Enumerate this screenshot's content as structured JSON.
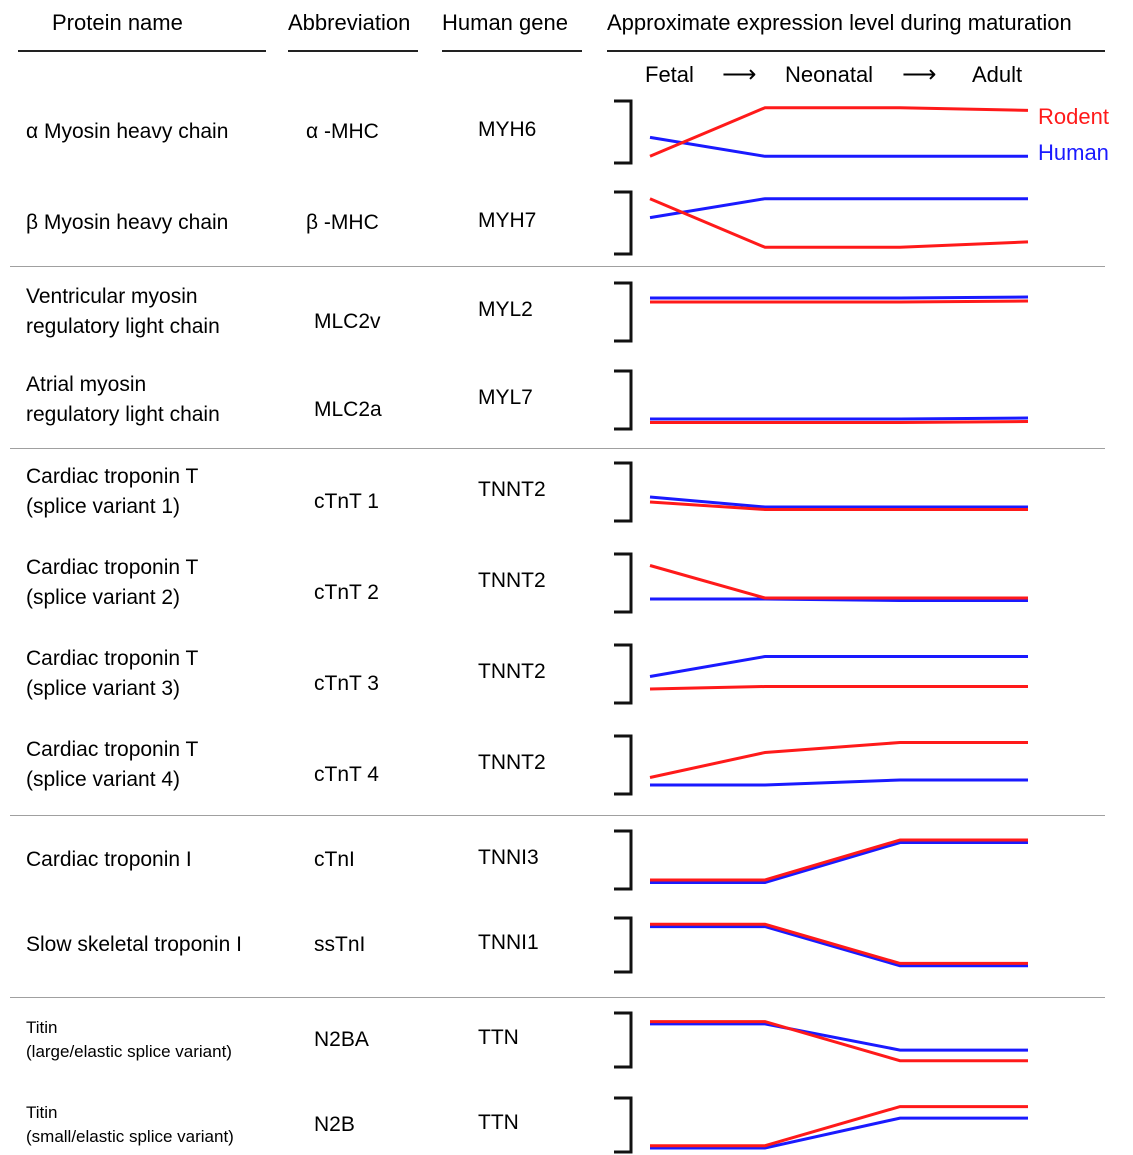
{
  "headers": {
    "protein": "Protein name",
    "abbr": "Abbreviation",
    "gene": "Human gene",
    "expr": "Approximate expression level during maturation"
  },
  "stages": [
    "Fetal",
    "Neonatal",
    "Adult"
  ],
  "arrow": "⟶",
  "legend": {
    "rodent": "Rodent",
    "human": "Human"
  },
  "colors": {
    "rodent": "#ff1a1a",
    "human": "#1a1aff"
  },
  "rows": [
    {
      "name": [
        "α Myosin heavy chain"
      ],
      "abbr": "α -MHC",
      "gene": "MYH6",
      "rodent": [
        0.05,
        0.95,
        0.95,
        0.9
      ],
      "human": [
        0.4,
        0.05,
        0.05,
        0.05
      ]
    },
    {
      "name": [
        "β Myosin heavy chain"
      ],
      "abbr": "β -MHC",
      "gene": "MYH7",
      "rodent": [
        0.95,
        0.05,
        0.05,
        0.15
      ],
      "human": [
        0.6,
        0.95,
        0.95,
        0.95
      ]
    },
    {
      "name": [
        "Ventricular myosin",
        "regulatory light chain"
      ],
      "abbr": "MLC2v",
      "gene": "MYL2",
      "rodent": [
        0.7,
        0.7,
        0.7,
        0.72
      ],
      "human": [
        0.78,
        0.78,
        0.78,
        0.8
      ]
    },
    {
      "name": [
        "Atrial myosin",
        "regulatory light chain"
      ],
      "abbr": "MLC2a",
      "gene": "MYL7",
      "rodent": [
        0.05,
        0.05,
        0.05,
        0.07
      ],
      "human": [
        0.12,
        0.12,
        0.12,
        0.14
      ]
    },
    {
      "name": [
        "Cardiac troponin T",
        "(splice variant 1)"
      ],
      "abbr": "cTnT 1",
      "gene": "TNNT2",
      "rodent": [
        0.3,
        0.15,
        0.15,
        0.15
      ],
      "human": [
        0.4,
        0.2,
        0.2,
        0.2
      ]
    },
    {
      "name": [
        "Cardiac troponin T",
        "(splice variant 2)"
      ],
      "abbr": "cTnT 2",
      "gene": "TNNT2",
      "rodent": [
        0.85,
        0.2,
        0.2,
        0.2
      ],
      "human": [
        0.18,
        0.18,
        0.15,
        0.15
      ]
    },
    {
      "name": [
        "Cardiac troponin T",
        "(splice variant 3)"
      ],
      "abbr": "cTnT 3",
      "gene": "TNNT2",
      "rodent": [
        0.2,
        0.25,
        0.25,
        0.25
      ],
      "human": [
        0.45,
        0.85,
        0.85,
        0.85
      ]
    },
    {
      "name": [
        "Cardiac troponin T",
        "(splice variant 4)"
      ],
      "abbr": "cTnT 4",
      "gene": "TNNT2",
      "rodent": [
        0.25,
        0.75,
        0.95,
        0.95
      ],
      "human": [
        0.1,
        0.1,
        0.2,
        0.2
      ]
    },
    {
      "name": [
        "Cardiac troponin I"
      ],
      "abbr": "cTnI",
      "gene": "TNNI3",
      "rodent": [
        0.1,
        0.1,
        0.9,
        0.9
      ],
      "human": [
        0.05,
        0.05,
        0.85,
        0.85
      ]
    },
    {
      "name": [
        "Slow skeletal troponin I"
      ],
      "abbr": "ssTnI",
      "gene": "TNNI1",
      "rodent": [
        0.95,
        0.95,
        0.1,
        0.1
      ],
      "human": [
        0.9,
        0.9,
        0.05,
        0.05
      ]
    },
    {
      "name": [
        "Titin",
        "(large/elastic splice variant)"
      ],
      "abbr": "N2BA",
      "gene": "TTN",
      "rodent": [
        0.9,
        0.9,
        0.05,
        0.05
      ],
      "human": [
        0.85,
        0.85,
        0.28,
        0.28
      ]
    },
    {
      "name": [
        "Titin",
        "(small/elastic splice variant)"
      ],
      "abbr": "N2B",
      "gene": "TTN",
      "rodent": [
        0.05,
        0.05,
        0.9,
        0.9
      ],
      "human": [
        0.0,
        0.0,
        0.65,
        0.65
      ]
    }
  ]
}
